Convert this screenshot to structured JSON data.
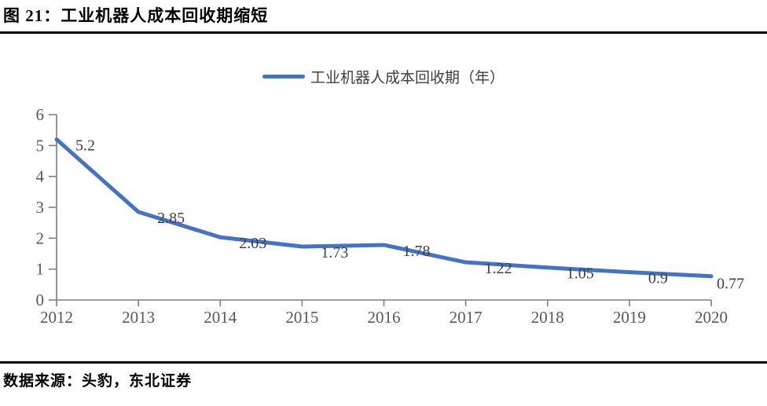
{
  "header": {
    "title": "图 21：工业机器人成本回收期缩短"
  },
  "chart_data": {
    "type": "line",
    "legend": "工业机器人成本回收期（年）",
    "legend_position": "top",
    "categories": [
      "2012",
      "2013",
      "2014",
      "2015",
      "2016",
      "2017",
      "2018",
      "2019",
      "2020"
    ],
    "series": [
      {
        "name": "工业机器人成本回收期（年）",
        "values": [
          5.2,
          2.85,
          2.03,
          1.73,
          1.78,
          1.22,
          1.05,
          0.9,
          0.77
        ]
      }
    ],
    "data_labels": [
      "5.2",
      "2.85",
      "2.03",
      "1.73",
      "1.78",
      "1.22",
      "1.05",
      "0.9",
      "0.77"
    ],
    "xlabel": "",
    "ylabel": "",
    "ylim": [
      0,
      6
    ],
    "y_ticks": [
      0,
      1,
      2,
      3,
      4,
      5,
      6
    ],
    "grid": false,
    "line_color": "#4472C4",
    "axis_color": "#7f7f7f",
    "tick_label_color": "#595959",
    "data_label_color": "#404040"
  },
  "footer": {
    "source": "数据来源：头豹，东北证券"
  }
}
